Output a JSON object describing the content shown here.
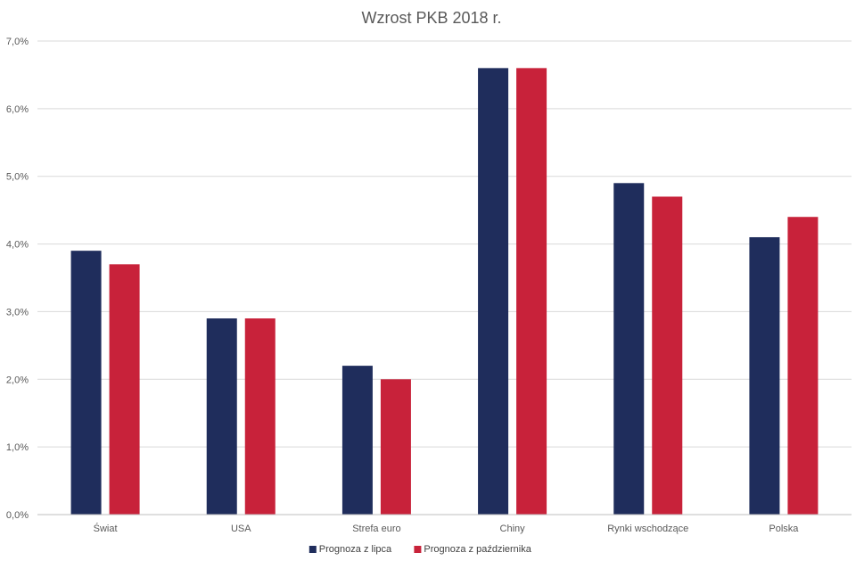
{
  "chart_data": {
    "type": "bar",
    "title": "Wzrost PKB 2018 r.",
    "xlabel": "",
    "ylabel": "",
    "categories": [
      "Świat",
      "USA",
      "Strefa euro",
      "Chiny",
      "Rynki wschodzące",
      "Polska"
    ],
    "series": [
      {
        "name": "Prognoza z lipca",
        "color": "#1f2d5c",
        "values": [
          3.9,
          2.9,
          2.2,
          6.6,
          4.9,
          4.1
        ]
      },
      {
        "name": "Prognoza z października",
        "color": "#c8223a",
        "values": [
          3.7,
          2.9,
          2.0,
          6.6,
          4.7,
          4.4
        ]
      }
    ],
    "ylim": [
      0,
      7
    ],
    "yticks": [
      0,
      1,
      2,
      3,
      4,
      5,
      6,
      7
    ],
    "ytick_labels": [
      "0,0%",
      "1,0%",
      "2,0%",
      "3,0%",
      "4,0%",
      "5,0%",
      "6,0%",
      "7,0%"
    ],
    "grid": true,
    "legend_position": "bottom"
  }
}
